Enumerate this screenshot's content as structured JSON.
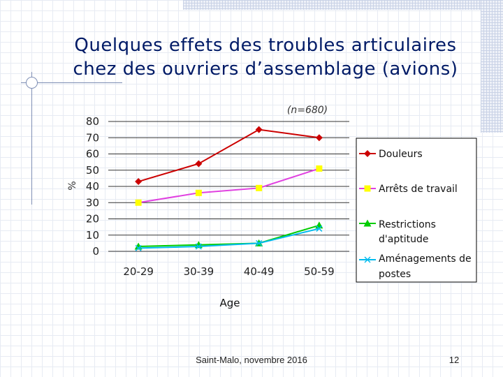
{
  "slide": {
    "title_line1": "Quelques effets des troubles articulaires",
    "title_line2": "chez des ouvriers d’assemblage (avions)",
    "footer": "Saint-Malo, novembre 2016",
    "page_number": "12"
  },
  "chart_data": {
    "type": "line",
    "annotation": "(n=680)",
    "xlabel": "Age",
    "ylabel": "%",
    "categories": [
      "20-29",
      "30-39",
      "40-49",
      "50-59"
    ],
    "yticks": [
      "0",
      "10",
      "20",
      "30",
      "40",
      "50",
      "60",
      "70",
      "80"
    ],
    "ylim": [
      0,
      80
    ],
    "grid": "horizontal",
    "legend_position": "right",
    "series": [
      {
        "name": "Douleurs",
        "values": [
          43,
          54,
          75,
          70
        ],
        "color": "#cc0000",
        "marker": "diamond"
      },
      {
        "name": "Arrêts de travail",
        "values": [
          30,
          36,
          39,
          51
        ],
        "color": "#e040e0",
        "marker": "square",
        "marker_color": "#ffff00"
      },
      {
        "name": "Restrictions d'aptitude",
        "values": [
          3,
          4,
          5,
          16
        ],
        "color": "#00cc00",
        "marker": "triangle"
      },
      {
        "name": "Aménagements de postes",
        "values": [
          2,
          3,
          5,
          14
        ],
        "color": "#00bbee",
        "marker": "x"
      }
    ]
  }
}
